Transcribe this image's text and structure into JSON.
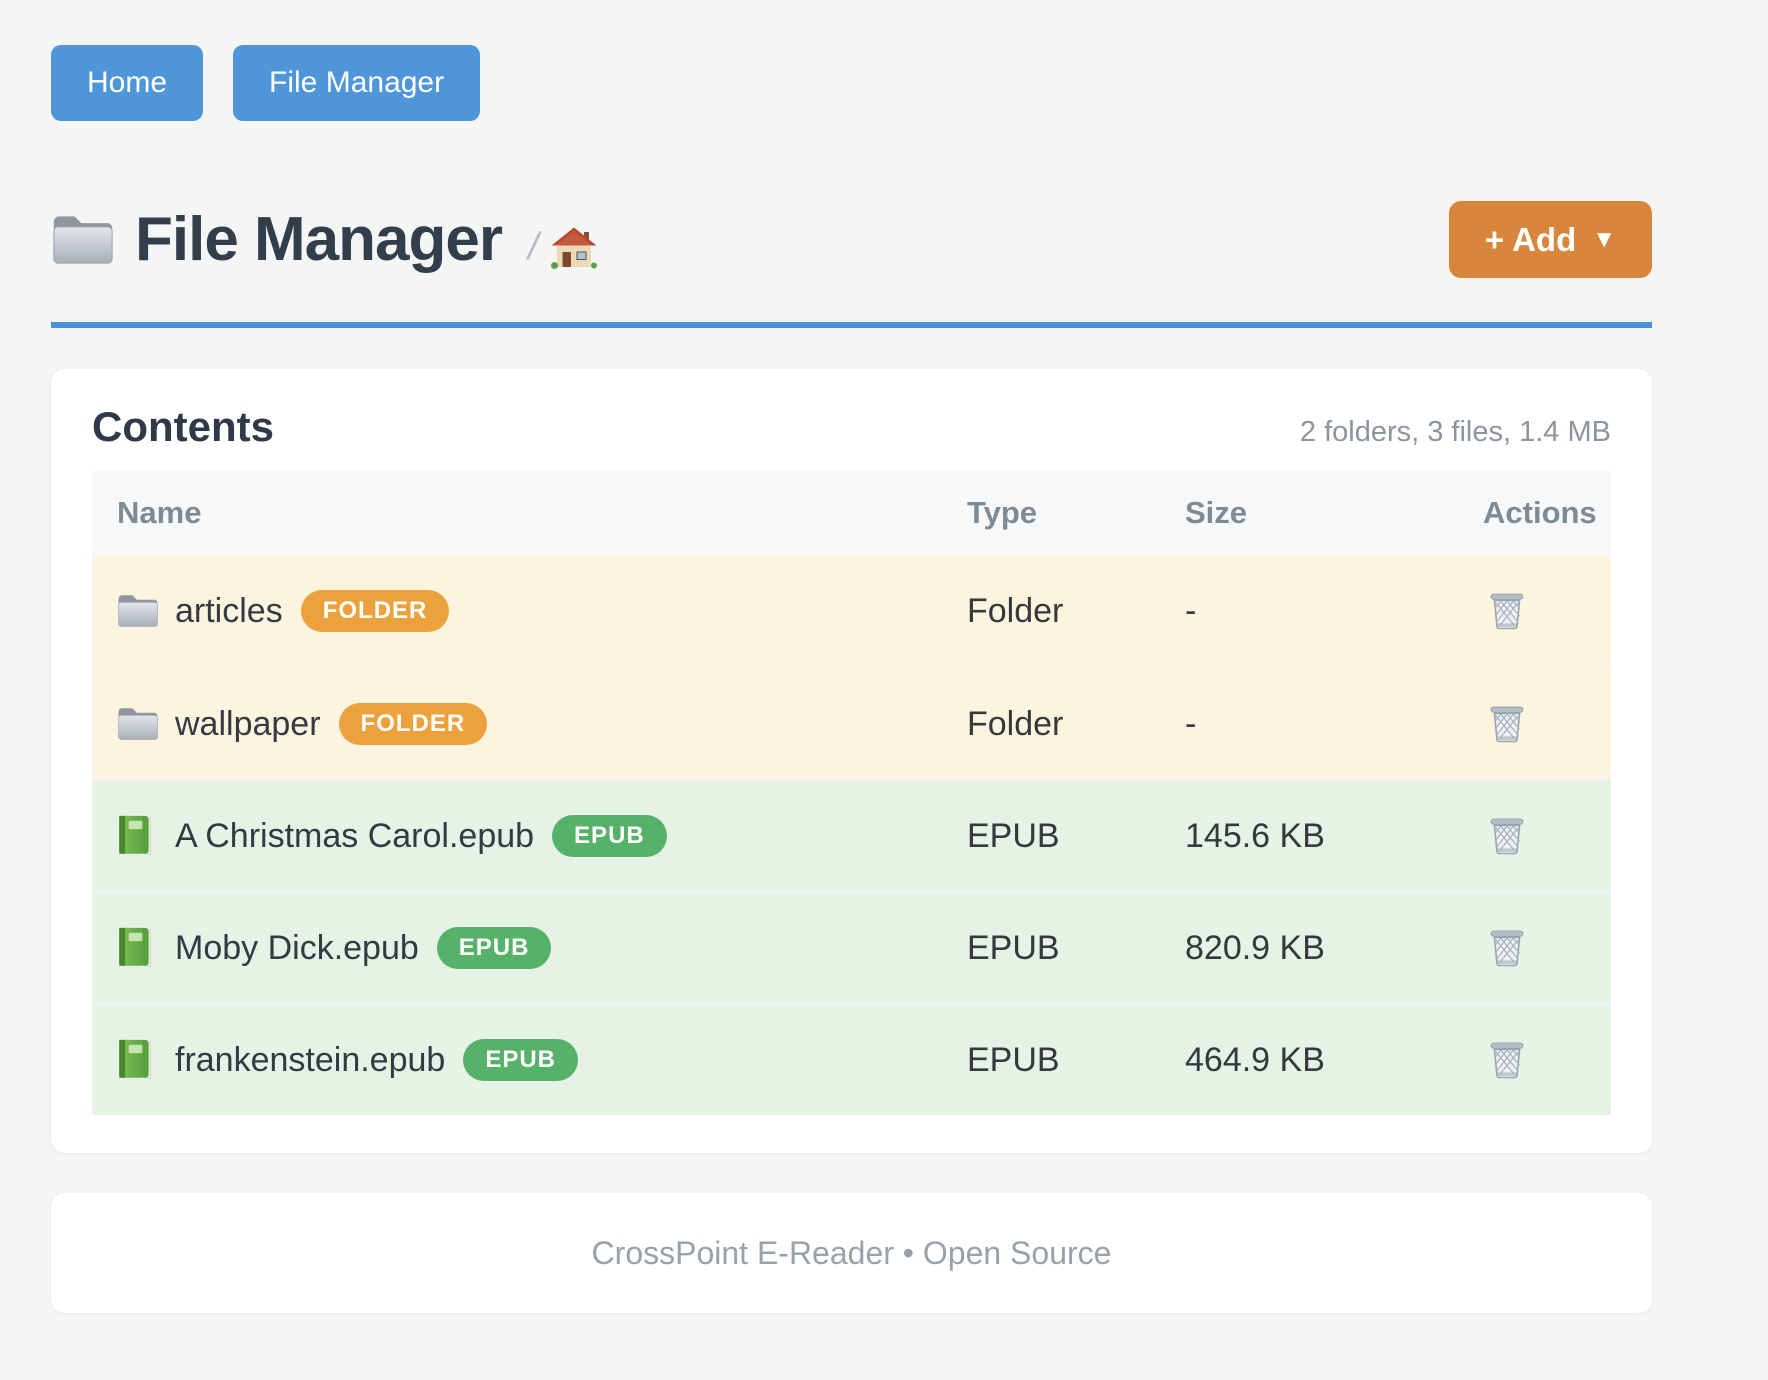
{
  "nav": {
    "buttons": [
      {
        "label": "Home"
      },
      {
        "label": "File Manager"
      }
    ]
  },
  "header": {
    "title": "File Manager",
    "title_icon": "folder-icon",
    "breadcrumb_separator": "/",
    "breadcrumb_icon": "home-icon",
    "add_button": {
      "label": "+ Add",
      "caret": "▼",
      "color": "#d8863b"
    }
  },
  "content_card": {
    "heading": "Contents",
    "summary": "2 folders, 3 files, 1.4 MB",
    "table": {
      "columns": [
        "Name",
        "Type",
        "Size",
        "Actions"
      ],
      "rows": [
        {
          "icon": "folder-icon",
          "name": "articles",
          "badge": "FOLDER",
          "badge_color": "#eca23c",
          "row_color": "#fdf4df",
          "type": "Folder",
          "size": "-",
          "action": "trash-icon"
        },
        {
          "icon": "folder-icon",
          "name": "wallpaper",
          "badge": "FOLDER",
          "badge_color": "#eca23c",
          "row_color": "#fdf4df",
          "type": "Folder",
          "size": "-",
          "action": "trash-icon"
        },
        {
          "icon": "book-icon",
          "name": "A Christmas Carol.epub",
          "badge": "EPUB",
          "badge_color": "#56b169",
          "row_color": "#e5f2e5",
          "type": "EPUB",
          "size": "145.6 KB",
          "action": "trash-icon"
        },
        {
          "icon": "book-icon",
          "name": "Moby Dick.epub",
          "badge": "EPUB",
          "badge_color": "#56b169",
          "row_color": "#e5f2e5",
          "type": "EPUB",
          "size": "820.9 KB",
          "action": "trash-icon"
        },
        {
          "icon": "book-icon",
          "name": "frankenstein.epub",
          "badge": "EPUB",
          "badge_color": "#56b169",
          "row_color": "#e5f2e5",
          "type": "EPUB",
          "size": "464.9 KB",
          "action": "trash-icon"
        }
      ]
    }
  },
  "footer": {
    "text": "CrossPoint E-Reader • Open Source"
  },
  "colors": {
    "page_background": "#f4f5f5",
    "nav_button": "#4e95d9",
    "divider_blue": "#4a90d8",
    "title_text": "#333e4c",
    "add_button": "#d8863b",
    "folder_badge": "#eca23c",
    "epub_badge": "#56b169",
    "folder_row": "#fdf4df",
    "epub_row": "#e5f2e5",
    "muted_text": "#8b959c"
  }
}
